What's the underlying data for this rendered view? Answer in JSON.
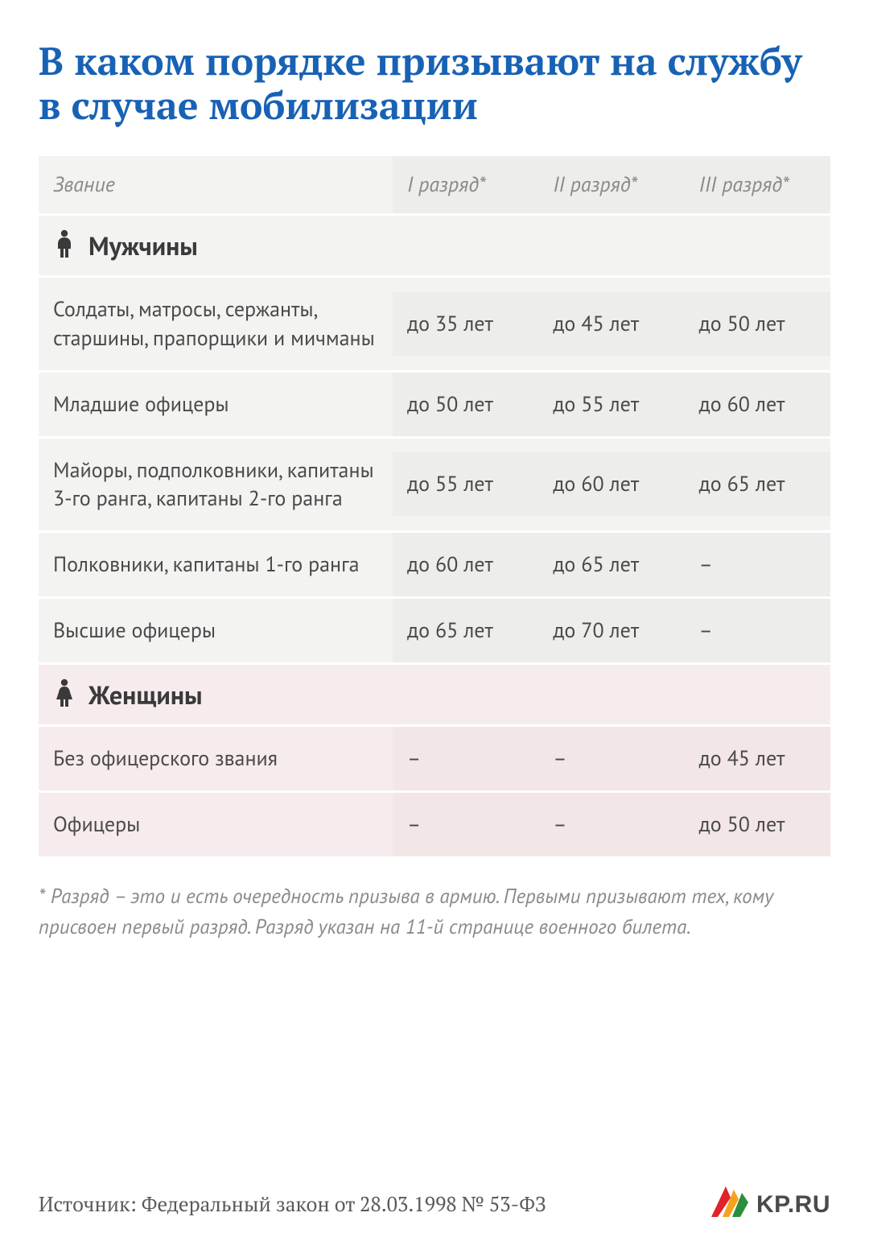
{
  "title": "В каком порядке призывают на службу в случае мобилизации",
  "colors": {
    "title": "#1862b5",
    "text": "#4a4a4a",
    "muted": "#8a8a8a",
    "men_bg_label": "#f3f4f2",
    "men_bg_value": "#edeeeb",
    "women_bg_label": "#f7eced",
    "women_bg_value": "#f3e6e7",
    "row_gap": "#ffffff",
    "logo_star_a": "#e1222b",
    "logo_star_b": "#f6a21b",
    "logo_star_c": "#2a8f3c"
  },
  "fonts": {
    "title_family": "PT Serif",
    "body_family": "PT Sans",
    "title_size_pt": 36,
    "body_size_pt": 20,
    "section_size_pt": 24
  },
  "columns": {
    "rank": "Звание",
    "c1": "I разряд*",
    "c2": "II разряд*",
    "c3": "III разряд*"
  },
  "sections": {
    "men": {
      "label": "Мужчины",
      "icon": "person-male-icon",
      "rows": [
        {
          "rank": "Солдаты, матросы, сержанты, старшины, прапорщики и мичманы",
          "c1": "до 35 лет",
          "c2": "до 45 лет",
          "c3": "до 50 лет"
        },
        {
          "rank": "Младшие офицеры",
          "c1": "до 50 лет",
          "c2": "до 55 лет",
          "c3": "до 60 лет"
        },
        {
          "rank": "Майоры, подполковники, капитаны 3-го ранга, капитаны 2-го ранга",
          "c1": "до 55 лет",
          "c2": "до 60 лет",
          "c3": "до 65 лет"
        },
        {
          "rank": "Полковники, капитаны 1-го ранга",
          "c1": "до 60 лет",
          "c2": "до 65 лет",
          "c3": "–"
        },
        {
          "rank": "Высшие офицеры",
          "c1": "до 65 лет",
          "c2": "до 70 лет",
          "c3": "–"
        }
      ]
    },
    "women": {
      "label": "Женщины",
      "icon": "person-female-icon",
      "rows": [
        {
          "rank": "Без офицерского звания",
          "c1": "–",
          "c2": "–",
          "c3": "до 45 лет"
        },
        {
          "rank": "Офицеры",
          "c1": "–",
          "c2": "–",
          "c3": "до 50 лет"
        }
      ]
    }
  },
  "footnote": "* Разряд – это и есть очередность призыва в армию. Первыми призывают тех, кому присвоен первый разряд. Разряд указан на 11-й странице военного билета.",
  "source": "Источник: Федеральный закон от 28.03.1998 № 53-ФЗ",
  "logo_text": "KP.RU"
}
